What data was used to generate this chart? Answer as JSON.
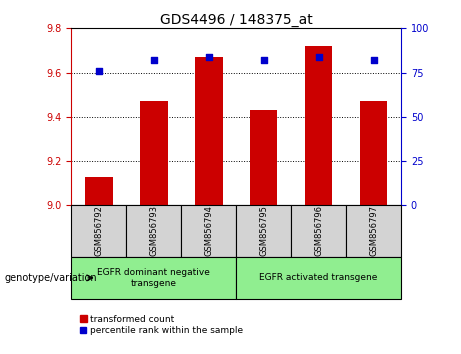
{
  "title": "GDS4496 / 148375_at",
  "samples": [
    "GSM856792",
    "GSM856793",
    "GSM856794",
    "GSM856795",
    "GSM856796",
    "GSM856797"
  ],
  "red_values": [
    9.13,
    9.47,
    9.67,
    9.43,
    9.72,
    9.47
  ],
  "blue_values": [
    76,
    82,
    84,
    82,
    84,
    82
  ],
  "ylim_left": [
    9.0,
    9.8
  ],
  "ylim_right": [
    0,
    100
  ],
  "yticks_left": [
    9.0,
    9.2,
    9.4,
    9.6,
    9.8
  ],
  "yticks_right": [
    0,
    25,
    50,
    75,
    100
  ],
  "group1_label": "EGFR dominant negative\ntransgene",
  "group2_label": "EGFR activated transgene",
  "group1_indices": [
    0,
    1,
    2
  ],
  "group2_indices": [
    3,
    4,
    5
  ],
  "genotype_label": "genotype/variation",
  "legend_red": "transformed count",
  "legend_blue": "percentile rank within the sample",
  "bar_color": "#cc0000",
  "dot_color": "#0000cc",
  "bg_xticklabels": "#d3d3d3",
  "bg_group": "#90ee90",
  "bar_width": 0.5,
  "title_fontsize": 10,
  "tick_fontsize": 7,
  "label_fontsize": 7
}
